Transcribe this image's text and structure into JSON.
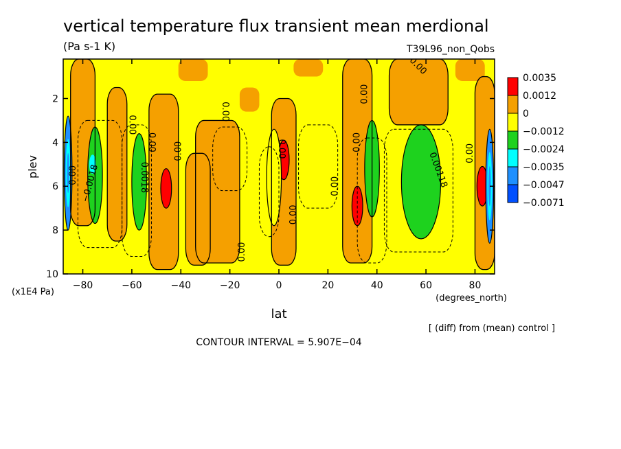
{
  "chart_data": {
    "type": "heatmap",
    "title": "vertical temperature flux transient mean merdional",
    "units": "(Pa s-1 K)",
    "run_label": "T39L96_non_Qobs",
    "xlabel": "lat",
    "x_unit_label": "(degrees_north)",
    "ylabel": "plev",
    "y_unit_label": "(x1E4 Pa)",
    "xlim": [
      -88,
      88
    ],
    "ylim": [
      10,
      0.2
    ],
    "x_ticks": [
      -80,
      -60,
      -40,
      -20,
      0,
      20,
      40,
      60,
      80
    ],
    "x_tick_labels": [
      "−80",
      "−60",
      "−40",
      "−20",
      "0",
      "20",
      "40",
      "60",
      "80"
    ],
    "y_ticks": [
      2,
      4,
      6,
      8,
      10
    ],
    "y_tick_labels": [
      "2",
      "4",
      "6",
      "8",
      "10"
    ],
    "contour_interval_text": "CONTOUR INTERVAL = 5.907E−04",
    "diff_note": "[ (diff) from (mean) control ]",
    "contour_labels": [
      "0.00",
      "−0.0018",
      "0.0018",
      "0.00118"
    ],
    "legend": {
      "labels": [
        "0.0035",
        "0.0012",
        "0",
        "−0.0012",
        "−0.0024",
        "−0.0035",
        "−0.0047",
        "−0.0071"
      ],
      "colors": [
        "#ff0000",
        "#f5a000",
        "#ffff00",
        "#1ed21e",
        "#00ffff",
        "#1e90ff",
        "#0050ff"
      ]
    },
    "features": [
      {
        "name": "positive-core",
        "lat": -46,
        "plev": 6.1,
        "value": 0.003
      },
      {
        "name": "positive-core",
        "lat": 2,
        "plev": 4.8,
        "value": 0.0035
      },
      {
        "name": "positive-core",
        "lat": 32,
        "plev": 6.9,
        "value": 0.003
      },
      {
        "name": "positive-core",
        "lat": 83,
        "plev": 6.0,
        "value": 0.0035
      },
      {
        "name": "negative-core",
        "lat": -75,
        "plev": 5.5,
        "value": -0.0024
      },
      {
        "name": "negative-core",
        "lat": -57,
        "plev": 5.8,
        "value": -0.0024
      },
      {
        "name": "negative-core",
        "lat": 58,
        "plev": 5.8,
        "value": -0.0024
      },
      {
        "name": "negative-core",
        "lat": 38,
        "plev": 5.2,
        "value": -0.0024
      },
      {
        "name": "negative-core",
        "lat": -86,
        "plev": 5.4,
        "value": -0.0047
      },
      {
        "name": "negative-core",
        "lat": 86,
        "plev": 6.0,
        "value": -0.0047
      },
      {
        "name": "negative-core",
        "lat": -2,
        "plev": 5.6,
        "value": -0.0012
      }
    ]
  }
}
